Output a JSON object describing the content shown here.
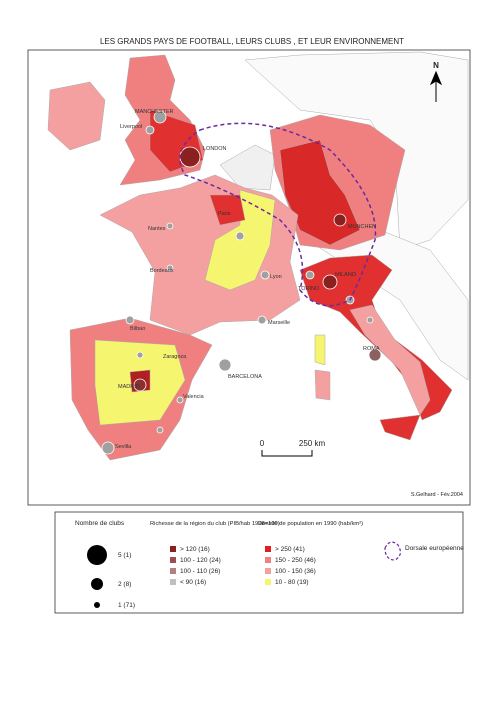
{
  "title": "LES GRANDS PAYS DE FOOTBALL, LEURS CLUBS , ET LEUR ENVIRONNEMENT",
  "north": "N",
  "scale": {
    "zero": "0",
    "label": "250 km"
  },
  "credit": "S.Gelhard - Fév.2004",
  "places": [
    "MANCHESTER",
    "Liverpool",
    "LONDON",
    "Paris",
    "Nantes",
    "Bordeaux",
    "Lyon",
    "Marseille",
    "MILANO",
    "TORINO",
    "ROMA",
    "MADRID",
    "BARCELONA",
    "Valencia",
    "Sevilla",
    "Bilbao",
    "Zaragoza",
    "MUNCHEN"
  ],
  "legend": {
    "clubs": {
      "title": "Nombre de clubs",
      "items": [
        "5 (1)",
        "2 (8)",
        "1 (71)"
      ]
    },
    "wealth": {
      "title": "Richesse de la région du club (PIB/hab 1998=100)",
      "items": [
        "> 120 (16)",
        "100 - 120 (24)",
        "100 - 110 (26)",
        "< 90 (16)"
      ]
    },
    "density": {
      "title": "Densité de population en 1990 (hab/km²)",
      "items": [
        "> 250 (41)",
        "150 - 250 (46)",
        "100 - 150 (36)",
        "10 - 80 (19)"
      ]
    },
    "dorsale": "Dorsale européenne"
  }
}
